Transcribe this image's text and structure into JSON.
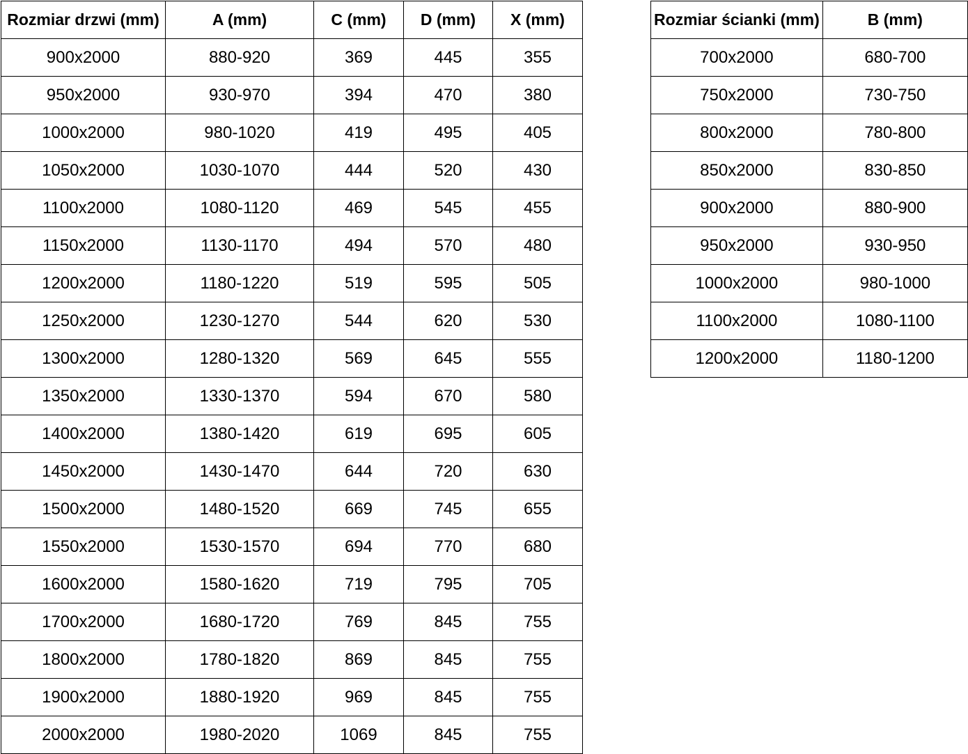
{
  "page": {
    "background_color": "#ffffff",
    "table_border_color": "#000000",
    "text_color": "#000000"
  },
  "chart_data": [
    {
      "type": "table",
      "title": "Rozmiar drzwi (mm)",
      "headers": [
        "Rozmiar drzwi (mm)",
        "A (mm)",
        "C (mm)",
        "D (mm)",
        "X (mm)"
      ],
      "rows": [
        [
          "900x2000",
          "880-920",
          "369",
          "445",
          "355"
        ],
        [
          "950x2000",
          "930-970",
          "394",
          "470",
          "380"
        ],
        [
          "1000x2000",
          "980-1020",
          "419",
          "495",
          "405"
        ],
        [
          "1050x2000",
          "1030-1070",
          "444",
          "520",
          "430"
        ],
        [
          "1100x2000",
          "1080-1120",
          "469",
          "545",
          "455"
        ],
        [
          "1150x2000",
          "1130-1170",
          "494",
          "570",
          "480"
        ],
        [
          "1200x2000",
          "1180-1220",
          "519",
          "595",
          "505"
        ],
        [
          "1250x2000",
          "1230-1270",
          "544",
          "620",
          "530"
        ],
        [
          "1300x2000",
          "1280-1320",
          "569",
          "645",
          "555"
        ],
        [
          "1350x2000",
          "1330-1370",
          "594",
          "670",
          "580"
        ],
        [
          "1400x2000",
          "1380-1420",
          "619",
          "695",
          "605"
        ],
        [
          "1450x2000",
          "1430-1470",
          "644",
          "720",
          "630"
        ],
        [
          "1500x2000",
          "1480-1520",
          "669",
          "745",
          "655"
        ],
        [
          "1550x2000",
          "1530-1570",
          "694",
          "770",
          "680"
        ],
        [
          "1600x2000",
          "1580-1620",
          "719",
          "795",
          "705"
        ],
        [
          "1700x2000",
          "1680-1720",
          "769",
          "845",
          "755"
        ],
        [
          "1800x2000",
          "1780-1820",
          "869",
          "845",
          "755"
        ],
        [
          "1900x2000",
          "1880-1920",
          "969",
          "845",
          "755"
        ],
        [
          "2000x2000",
          "1980-2020",
          "1069",
          "845",
          "755"
        ]
      ]
    },
    {
      "type": "table",
      "title": "Rozmiar ścianki (mm)",
      "headers": [
        "Rozmiar ścianki (mm)",
        "B (mm)"
      ],
      "rows": [
        [
          "700x2000",
          "680-700"
        ],
        [
          "750x2000",
          "730-750"
        ],
        [
          "800x2000",
          "780-800"
        ],
        [
          "850x2000",
          "830-850"
        ],
        [
          "900x2000",
          "880-900"
        ],
        [
          "950x2000",
          "930-950"
        ],
        [
          "1000x2000",
          "980-1000"
        ],
        [
          "1100x2000",
          "1080-1100"
        ],
        [
          "1200x2000",
          "1180-1200"
        ]
      ]
    }
  ]
}
